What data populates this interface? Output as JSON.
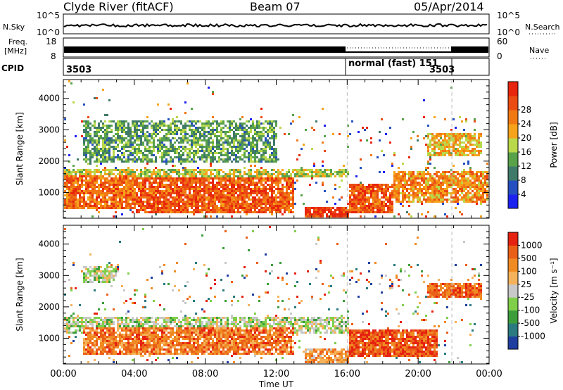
{
  "header": {
    "station": "Clyde River (fitACF)",
    "beam": "Beam 07",
    "date": "05/Apr/2014"
  },
  "noise_panel": {
    "left_label": "N.Sky",
    "left_ticks": [
      "10^5",
      "10^0"
    ],
    "right_label": "N.Search",
    "right_ticks": [
      "10^5",
      "10^0"
    ]
  },
  "freq_panel": {
    "left_label_1": "Freq.",
    "left_label_2": "[MHz]",
    "left_ticks": [
      "18",
      "8"
    ],
    "right_label": "Nave",
    "right_ticks": [
      "60",
      "0"
    ]
  },
  "cpid": {
    "label": "CPID",
    "segments": [
      "3503",
      "normal (fast) 151",
      "3503"
    ]
  },
  "chart_data": [
    {
      "type": "heatmap",
      "title": "",
      "xlabel": "",
      "ylabel": "Slant Range [km]",
      "x_ticks": [
        "00:00",
        "04:00",
        "08:00",
        "12:00",
        "16:00",
        "20:00",
        "00:00"
      ],
      "y_ticks": [
        1000,
        2000,
        3000,
        4000
      ],
      "ylim": [
        180,
        4600
      ],
      "x_hours": [
        0,
        24
      ],
      "colorbar": {
        "label": "Power [dB]",
        "ticks": [
          4,
          8,
          12,
          16,
          20,
          24,
          28
        ],
        "colors": [
          "#1b22f0",
          "#244fc0",
          "#3f7a68",
          "#58a24a",
          "#b9d84a",
          "#f6a21a",
          "#f17914",
          "#ea4b12",
          "#e8250d"
        ]
      },
      "bands_km": [
        {
          "t": [
            0,
            4
          ],
          "range": [
            500,
            1600
          ],
          "level": 0.8
        },
        {
          "t": [
            4,
            13
          ],
          "range": [
            400,
            1500
          ],
          "level": 0.85
        },
        {
          "t": [
            0,
            16
          ],
          "range": [
            1500,
            1800
          ],
          "level": 0.5
        },
        {
          "t": [
            1,
            12
          ],
          "range": [
            2000,
            3300
          ],
          "level": 0.35
        },
        {
          "t": [
            13.5,
            16
          ],
          "range": [
            250,
            600
          ],
          "level": 0.95
        },
        {
          "t": [
            16,
            18.5
          ],
          "range": [
            400,
            1300
          ],
          "level": 0.85
        },
        {
          "t": [
            18.5,
            24
          ],
          "range": [
            700,
            1700
          ],
          "level": 0.7
        },
        {
          "t": [
            20.5,
            23.5
          ],
          "range": [
            2200,
            2900
          ],
          "level": 0.6
        }
      ]
    },
    {
      "type": "heatmap",
      "title": "",
      "xlabel": "Time UT",
      "ylabel": "Slant Range [km]",
      "x_ticks": [
        "00:00",
        "04:00",
        "08:00",
        "12:00",
        "16:00",
        "20:00",
        "00:00"
      ],
      "y_ticks": [
        1000,
        2000,
        3000,
        4000
      ],
      "ylim": [
        180,
        4600
      ],
      "x_hours": [
        0,
        24
      ],
      "colorbar": {
        "label": "Velocity [m s⁻¹]",
        "ticks": [
          1000,
          500,
          100,
          25,
          -25,
          -100,
          -500,
          -1000
        ],
        "colors": [
          "#1f3fa0",
          "#2a7a80",
          "#3c9d3c",
          "#7fcf4a",
          "#c8c8c8",
          "#f5b25a",
          "#f08a22",
          "#ea5f18",
          "#e62210"
        ]
      },
      "bands_km": [
        {
          "t": [
            0,
            16
          ],
          "range": [
            1200,
            1750
          ],
          "level": 0.45
        },
        {
          "t": [
            1,
            13
          ],
          "range": [
            500,
            1400
          ],
          "level": 0.8
        },
        {
          "t": [
            13.5,
            16
          ],
          "range": [
            250,
            700
          ],
          "level": 0.7
        },
        {
          "t": [
            16,
            21
          ],
          "range": [
            450,
            1300
          ],
          "level": 0.9
        },
        {
          "t": [
            20.5,
            23.5
          ],
          "range": [
            2300,
            2800
          ],
          "level": 0.85
        },
        {
          "t": [
            1,
            3
          ],
          "range": [
            2800,
            3300
          ],
          "level": 0.45
        }
      ]
    }
  ]
}
